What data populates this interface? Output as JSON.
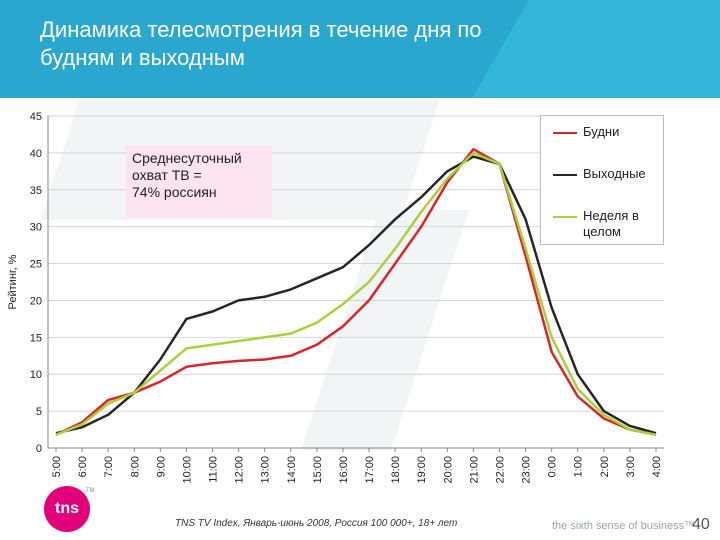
{
  "slide": {
    "title_line1": "Динамика телесмотрения в течение дня по",
    "title_line2": "будням и выходным",
    "source": "TNS TV Index, Январь-июнь 2008, Россия 100 000+, 18+ лет",
    "tagline": "the sixth sense of business™",
    "page_number": "40",
    "logo_text": "tns",
    "logo_tm": "TM"
  },
  "callout": {
    "lines": [
      "Среднесуточный",
      "охват ТВ =",
      "74% россиян"
    ]
  },
  "colors": {
    "weekdays": "#d9262a",
    "weekends": "#262626",
    "week": "#a8d13a",
    "header": "#2aa7cf",
    "callout_bg": "#fbe3ef"
  },
  "chart_data": {
    "type": "line",
    "title": "",
    "xlabel": "",
    "ylabel": "Рейтинг, %",
    "ylim": [
      0,
      45
    ],
    "yticks": [
      0,
      5,
      10,
      15,
      20,
      25,
      30,
      35,
      40,
      45
    ],
    "x": [
      "5:00",
      "6:00",
      "7:00",
      "8:00",
      "9:00",
      "10:00",
      "11:00",
      "12:00",
      "13:00",
      "14:00",
      "15:00",
      "16:00",
      "17:00",
      "18:00",
      "19:00",
      "20:00",
      "21:00",
      "22:00",
      "23:00",
      "0:00",
      "1:00",
      "2:00",
      "3:00",
      "4:00"
    ],
    "grid": true,
    "legend_position": "top-right",
    "series": [
      {
        "name": "Будни",
        "values": [
          1.8,
          3.5,
          6.5,
          7.5,
          9,
          11,
          11.5,
          11.8,
          12,
          12.5,
          14,
          16.5,
          20,
          25,
          30,
          36,
          40.5,
          38.5,
          26,
          13,
          7,
          4,
          2.5,
          1.8
        ]
      },
      {
        "name": "Выходные",
        "values": [
          2,
          2.8,
          4.5,
          7.5,
          12,
          17.5,
          18.5,
          20,
          20.5,
          21.5,
          23,
          24.5,
          27.5,
          31,
          34,
          37.5,
          39.5,
          38.5,
          31,
          19,
          10,
          5,
          3,
          2
        ]
      },
      {
        "name": "Неделя в целом",
        "values": [
          1.8,
          3.2,
          6,
          7.5,
          10.5,
          13.5,
          14,
          14.5,
          15,
          15.5,
          17,
          19.5,
          22.5,
          27,
          32,
          36.5,
          40,
          38.5,
          27,
          15,
          8,
          4.5,
          2.5,
          1.8
        ]
      }
    ]
  }
}
